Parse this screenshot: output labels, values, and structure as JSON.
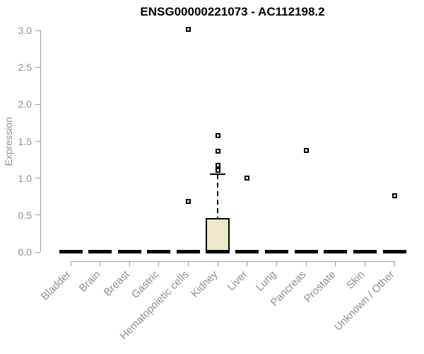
{
  "title": "ENSG00000221073 - AC112198.2",
  "colors": {
    "background": "#ffffff",
    "title_text": "#000000",
    "axis_line": "#95999b",
    "tick_label_text": "#8a8f91",
    "box_fill": "#ece8cc",
    "box_border": "#000000",
    "median_bar": "#000000",
    "outlier_marker": "#000000"
  },
  "chart_data": {
    "type": "boxplot",
    "title": "ENSG00000221073 - AC112198.2",
    "xlabel": "",
    "ylabel": "Expression",
    "ylim": [
      0.0,
      3.0
    ],
    "yticks": [
      0.0,
      0.5,
      1.0,
      1.5,
      2.0,
      2.5,
      3.0
    ],
    "ytick_labels": [
      "0.0",
      "0.5",
      "1.0",
      "1.5",
      "2.0",
      "2.5",
      "3.0"
    ],
    "grid": false,
    "legend": null,
    "outlier_marker": "open-square",
    "categories": [
      "Bladder",
      "Brain",
      "Breast",
      "Gastric",
      "Hematopoietic cells",
      "Kidney",
      "Liver",
      "Lung",
      "Pancreas",
      "Prostate",
      "Skin",
      "Unknown / Other"
    ],
    "boxes": [
      {
        "category": "Bladder",
        "q1": 0,
        "median": 0,
        "q3": 0,
        "whisker_low": 0,
        "whisker_high": 0,
        "outliers": []
      },
      {
        "category": "Brain",
        "q1": 0,
        "median": 0,
        "q3": 0,
        "whisker_low": 0,
        "whisker_high": 0,
        "outliers": []
      },
      {
        "category": "Breast",
        "q1": 0,
        "median": 0,
        "q3": 0,
        "whisker_low": 0,
        "whisker_high": 0,
        "outliers": []
      },
      {
        "category": "Gastric",
        "q1": 0,
        "median": 0,
        "q3": 0,
        "whisker_low": 0,
        "whisker_high": 0,
        "outliers": []
      },
      {
        "category": "Hematopoietic cells",
        "q1": 0,
        "median": 0,
        "q3": 0,
        "whisker_low": 0,
        "whisker_high": 0,
        "outliers": [
          0.69,
          3.01
        ]
      },
      {
        "category": "Kidney",
        "q1": 0,
        "median": 0,
        "q3": 0.46,
        "whisker_low": 0,
        "whisker_high": 1.05,
        "outliers": [
          1.11,
          1.17,
          1.37,
          1.58
        ]
      },
      {
        "category": "Liver",
        "q1": 0,
        "median": 0,
        "q3": 0,
        "whisker_low": 0,
        "whisker_high": 0,
        "outliers": [
          1.0
        ]
      },
      {
        "category": "Lung",
        "q1": 0,
        "median": 0,
        "q3": 0,
        "whisker_low": 0,
        "whisker_high": 0,
        "outliers": []
      },
      {
        "category": "Pancreas",
        "q1": 0,
        "median": 0,
        "q3": 0,
        "whisker_low": 0,
        "whisker_high": 0,
        "outliers": [
          1.38
        ]
      },
      {
        "category": "Prostate",
        "q1": 0,
        "median": 0,
        "q3": 0,
        "whisker_low": 0,
        "whisker_high": 0,
        "outliers": []
      },
      {
        "category": "Skin",
        "q1": 0,
        "median": 0,
        "q3": 0,
        "whisker_low": 0,
        "whisker_high": 0,
        "outliers": []
      },
      {
        "category": "Unknown / Other",
        "q1": 0,
        "median": 0,
        "q3": 0,
        "whisker_low": 0,
        "whisker_high": 0,
        "outliers": [
          0.76
        ]
      }
    ]
  }
}
